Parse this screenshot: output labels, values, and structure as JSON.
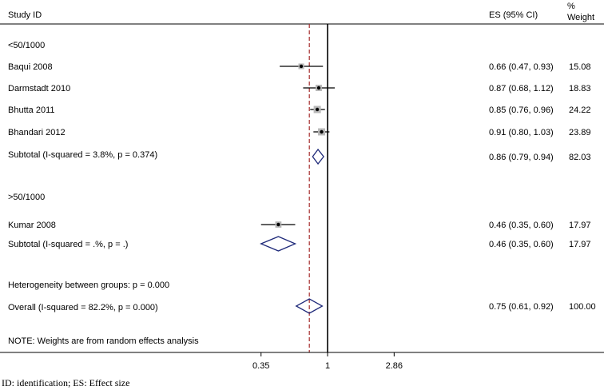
{
  "header": {
    "study_label": "Study ID",
    "es_label": "ES (95% CI)",
    "weight_label_1": "%",
    "weight_label_2": "Weight"
  },
  "groups": [
    {
      "name": "<50/1000",
      "subtotal_label": "Subtotal  (I-squared = 3.8%, p = 0.374)"
    },
    {
      "name": ">50/1000",
      "subtotal_label": "Subtotal  (I-squared = .%, p = .)"
    }
  ],
  "heterogeneity_label": "Heterogeneity between groups: p = 0.000",
  "overall_label": "Overall  (I-squared = 82.2%, p = 0.000)",
  "note": "NOTE: Weights are from random effects analysis",
  "footnote": "ID: identification; ES: Effect size",
  "chart_data": {
    "type": "forest",
    "x_scale": "log",
    "x_ticks": [
      0.35,
      1,
      2.86
    ],
    "x_tick_labels": [
      "0.35",
      "1",
      "2.86"
    ],
    "null_line": 1,
    "overall_line": 0.75,
    "rows": [
      {
        "kind": "study",
        "label": "Baqui 2008",
        "es": 0.66,
        "lo": 0.47,
        "hi": 0.93,
        "es_text": "0.66 (0.47, 0.93)",
        "weight": 15.08,
        "weight_text": "15.08"
      },
      {
        "kind": "study",
        "label": "Darmstadt 2010",
        "es": 0.87,
        "lo": 0.68,
        "hi": 1.12,
        "es_text": "0.87 (0.68, 1.12)",
        "weight": 18.83,
        "weight_text": "18.83"
      },
      {
        "kind": "study",
        "label": "Bhutta 2011",
        "es": 0.85,
        "lo": 0.76,
        "hi": 0.96,
        "es_text": "0.85 (0.76, 0.96)",
        "weight": 24.22,
        "weight_text": "24.22"
      },
      {
        "kind": "study",
        "label": "Bhandari 2012",
        "es": 0.91,
        "lo": 0.8,
        "hi": 1.03,
        "es_text": "0.91 (0.80, 1.03)",
        "weight": 23.89,
        "weight_text": "23.89"
      },
      {
        "kind": "subtotal",
        "group": 0,
        "es": 0.86,
        "lo": 0.79,
        "hi": 0.94,
        "es_text": "0.86 (0.79, 0.94)",
        "weight": 82.03,
        "weight_text": "82.03"
      },
      {
        "kind": "study",
        "label": "Kumar 2008",
        "es": 0.46,
        "lo": 0.35,
        "hi": 0.6,
        "es_text": "0.46 (0.35, 0.60)",
        "weight": 17.97,
        "weight_text": "17.97"
      },
      {
        "kind": "subtotal",
        "group": 1,
        "es": 0.46,
        "lo": 0.35,
        "hi": 0.6,
        "es_text": "0.46 (0.35, 0.60)",
        "weight": 17.97,
        "weight_text": "17.97"
      },
      {
        "kind": "overall",
        "es": 0.75,
        "lo": 0.61,
        "hi": 0.92,
        "es_text": "0.75 (0.61, 0.92)",
        "weight": 100.0,
        "weight_text": "100.00"
      }
    ]
  },
  "colors": {
    "diamond": "#1f2a7a",
    "overall_line": "#a52a2a",
    "marker_box": "#b8b8b8",
    "axis": "#000000"
  }
}
